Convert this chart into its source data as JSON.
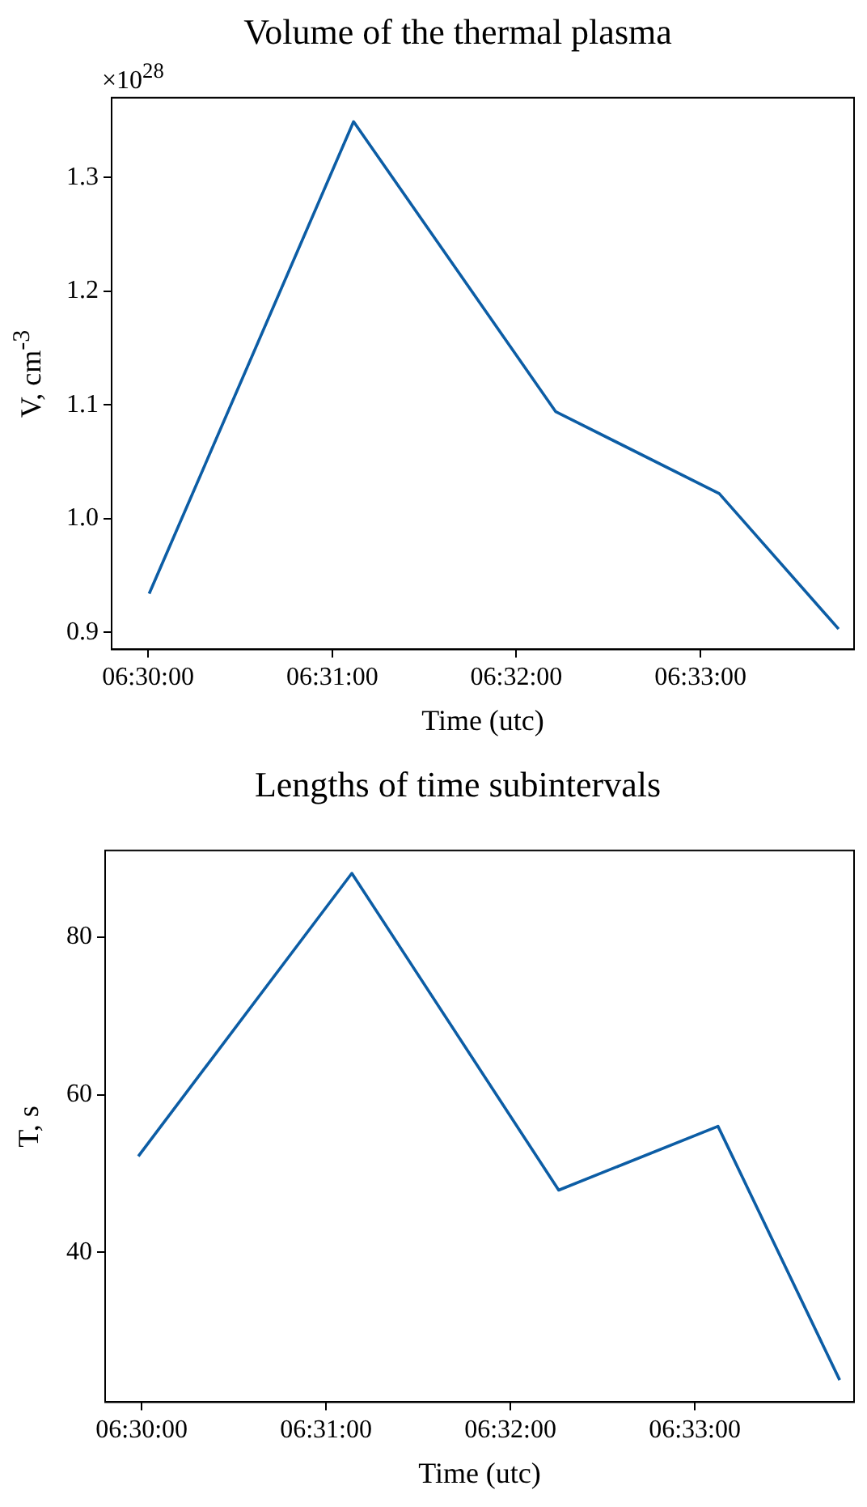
{
  "chart_data": [
    {
      "type": "line",
      "title": "Volume of the thermal plasma",
      "xlabel": "Time (utc)",
      "ylabel": "V, cm$^{-3}$",
      "annotations": [
        "×10$^{28}$"
      ],
      "x": [
        6.5001,
        6.5186,
        6.5369,
        6.5517,
        6.5625
      ],
      "series": [
        {
          "color": "#0c5da5",
          "values": [
            0.934,
            1.349,
            1.094,
            1.022,
            0.903
          ]
        }
      ],
      "xlim": [
        6.4967,
        6.5639
      ],
      "xticks": [
        {
          "value": 6.5,
          "label": "06:30:00"
        },
        {
          "value": 6.516667,
          "label": "06:31:00"
        },
        {
          "value": 6.533333,
          "label": "06:32:00"
        },
        {
          "value": 6.55,
          "label": "06:33:00"
        }
      ],
      "ylim": [
        0.885,
        1.37
      ],
      "yticks": [
        0.9,
        {
          "value": 1.0,
          "label": "1.0"
        },
        1.1,
        1.2,
        1.3
      ],
      "grid": false,
      "legend": false
    },
    {
      "type": "line",
      "title": "Lengths of time subintervals",
      "xlabel": "Time (utc)",
      "ylabel": "T, s",
      "x": [
        6.4997,
        6.519,
        6.5377,
        6.5521,
        6.5631
      ],
      "series": [
        {
          "color": "#0c5da5",
          "values": [
            52.2,
            88.1,
            47.9,
            56.0,
            23.8
          ]
        }
      ],
      "xlim": [
        6.4967,
        6.5644
      ],
      "xticks": [
        {
          "value": 6.5,
          "label": "06:30:00"
        },
        {
          "value": 6.516667,
          "label": "06:31:00"
        },
        {
          "value": 6.533333,
          "label": "06:32:00"
        },
        {
          "value": 6.55,
          "label": "06:33:00"
        }
      ],
      "ylim": [
        21,
        91
      ],
      "yticks": [
        40,
        60,
        80
      ],
      "grid": false,
      "legend": false
    }
  ]
}
